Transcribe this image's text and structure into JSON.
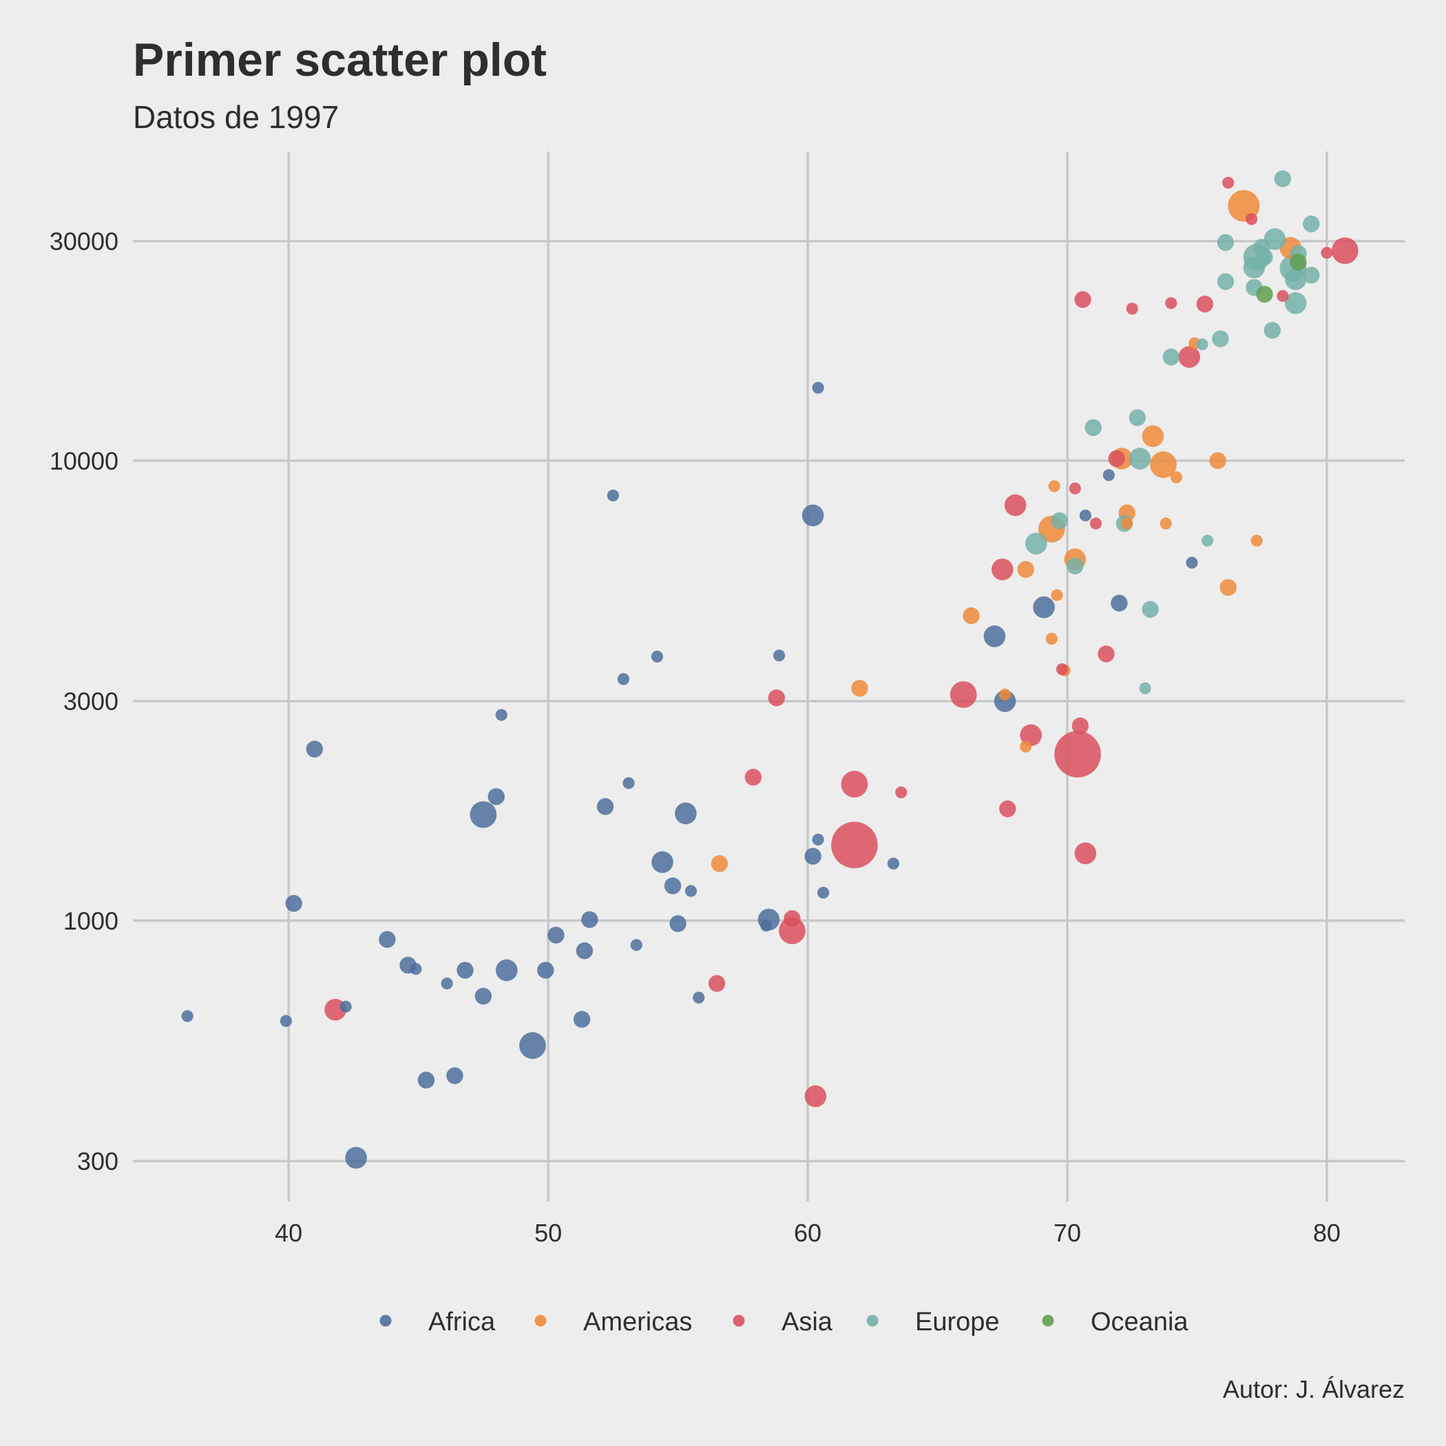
{
  "chart_data": {
    "type": "scatter",
    "title": "Primer scatter plot",
    "subtitle": "Datos de 1997",
    "caption": "Autor: J. Álvarez",
    "xlabel": "",
    "ylabel": "",
    "x_range": [
      34,
      83
    ],
    "y_range": [
      245,
      47000
    ],
    "y_scale": "log10",
    "x_ticks": [
      40,
      50,
      60,
      70,
      80
    ],
    "x_tick_labels": [
      "40",
      "50",
      "60",
      "70",
      "80"
    ],
    "y_ticks": [
      300,
      1000,
      3000,
      10000,
      30000
    ],
    "y_tick_labels": [
      "300",
      "1000",
      "3000",
      "10000",
      "30000"
    ],
    "grid": true,
    "legend_position": "bottom",
    "series": [
      {
        "name": "Africa",
        "color": "#4e6e9b",
        "points": [
          [
            36.1,
            620,
            1
          ],
          [
            39.9,
            605,
            1
          ],
          [
            40.2,
            1090,
            2
          ],
          [
            41,
            2360,
            2
          ],
          [
            42.2,
            650,
            1
          ],
          [
            42.6,
            305,
            3
          ],
          [
            43.8,
            910,
            2
          ],
          [
            44.6,
            800,
            2
          ],
          [
            44.9,
            785,
            1
          ],
          [
            46.1,
            730,
            1
          ],
          [
            46.4,
            460,
            2
          ],
          [
            45.3,
            450,
            2
          ],
          [
            46.8,
            780,
            2
          ],
          [
            47.5,
            685,
            2
          ],
          [
            47.5,
            1700,
            4
          ],
          [
            48,
            1860,
            2
          ],
          [
            48.2,
            2800,
            1
          ],
          [
            48.4,
            780,
            3
          ],
          [
            49.4,
            535,
            4
          ],
          [
            49.9,
            780,
            2
          ],
          [
            50.3,
            930,
            2
          ],
          [
            51.3,
            610,
            2
          ],
          [
            51.4,
            860,
            2
          ],
          [
            51.6,
            1005,
            2
          ],
          [
            52.2,
            1770,
            2
          ],
          [
            52.5,
            8400,
            1
          ],
          [
            52.9,
            3350,
            1
          ],
          [
            53.1,
            1990,
            1
          ],
          [
            53.4,
            885,
            1
          ],
          [
            54.2,
            3750,
            1
          ],
          [
            54.4,
            1340,
            3
          ],
          [
            54.8,
            1190,
            2
          ],
          [
            55,
            985,
            2
          ],
          [
            55.3,
            1710,
            3
          ],
          [
            55.5,
            1160,
            1
          ],
          [
            55.8,
            680,
            1
          ],
          [
            58.4,
            975,
            1
          ],
          [
            58.5,
            1005,
            3
          ],
          [
            58.9,
            3770,
            1
          ],
          [
            60.2,
            1380,
            2
          ],
          [
            60.2,
            7600,
            3
          ],
          [
            60.4,
            1500,
            1
          ],
          [
            60.4,
            14400,
            1
          ],
          [
            60.6,
            1150,
            1
          ],
          [
            63.3,
            1330,
            1
          ],
          [
            67.2,
            4150,
            3
          ],
          [
            67.6,
            3000,
            3
          ],
          [
            69.1,
            4800,
            3
          ],
          [
            70.7,
            7600,
            1
          ],
          [
            71.6,
            9300,
            1
          ],
          [
            72,
            4900,
            2
          ],
          [
            74.8,
            6000,
            1
          ]
        ]
      },
      {
        "name": "Americas",
        "color": "#ef8a3a",
        "points": [
          [
            56.6,
            1330,
            2
          ],
          [
            62,
            3200,
            2
          ],
          [
            66.3,
            4600,
            2
          ],
          [
            67.6,
            3100,
            1
          ],
          [
            68.4,
            2390,
            1
          ],
          [
            68.4,
            5800,
            2
          ],
          [
            69.4,
            4100,
            1
          ],
          [
            69.4,
            7100,
            4
          ],
          [
            69.5,
            8800,
            1
          ],
          [
            69.6,
            5100,
            1
          ],
          [
            69.9,
            3500,
            1
          ],
          [
            70.3,
            6100,
            3
          ],
          [
            72.1,
            10100,
            3
          ],
          [
            72.3,
            7700,
            2
          ],
          [
            72.3,
            7300,
            1
          ],
          [
            73.3,
            11300,
            3
          ],
          [
            73.7,
            9800,
            4
          ],
          [
            73.8,
            7300,
            1
          ],
          [
            74.2,
            9200,
            1
          ],
          [
            74.9,
            18000,
            1
          ],
          [
            75.8,
            10000,
            2
          ],
          [
            76.2,
            5300,
            2
          ],
          [
            77.3,
            6700,
            1
          ],
          [
            76.8,
            35800,
            5
          ],
          [
            78.6,
            29000,
            3
          ]
        ]
      },
      {
        "name": "Asia",
        "color": "#d9505e",
        "points": [
          [
            41.8,
            640,
            3
          ],
          [
            56.5,
            730,
            2
          ],
          [
            57.9,
            2050,
            2
          ],
          [
            58.8,
            3050,
            2
          ],
          [
            59.4,
            1010,
            2
          ],
          [
            59.4,
            950,
            4
          ],
          [
            60.3,
            415,
            3
          ],
          [
            61.8,
            1460,
            8
          ],
          [
            61.8,
            1980,
            4
          ],
          [
            63.6,
            1900,
            1
          ],
          [
            66,
            3100,
            4
          ],
          [
            67.5,
            5800,
            3
          ],
          [
            67.7,
            1750,
            2
          ],
          [
            68,
            8000,
            3
          ],
          [
            68.6,
            2530,
            3
          ],
          [
            69.8,
            3520,
            1
          ],
          [
            70.3,
            8700,
            1
          ],
          [
            70.4,
            2300,
            8
          ],
          [
            70.5,
            2650,
            2
          ],
          [
            70.6,
            22400,
            2
          ],
          [
            70.7,
            1400,
            3
          ],
          [
            71.1,
            7300,
            1
          ],
          [
            71.5,
            3800,
            2
          ],
          [
            71.9,
            10100,
            2
          ],
          [
            72.5,
            21400,
            1
          ],
          [
            74,
            22000,
            1
          ],
          [
            74.7,
            16800,
            3
          ],
          [
            75.3,
            21900,
            2
          ],
          [
            76.2,
            40200,
            1
          ],
          [
            77.1,
            33500,
            1
          ],
          [
            78.3,
            22800,
            1
          ],
          [
            80,
            28300,
            1
          ],
          [
            80.7,
            28600,
            4
          ]
        ]
      },
      {
        "name": "Europe",
        "color": "#74b0a8",
        "points": [
          [
            73,
            3200,
            1
          ],
          [
            71,
            11800,
            2
          ],
          [
            72.2,
            7300,
            2
          ],
          [
            72.8,
            10100,
            3
          ],
          [
            72.7,
            12400,
            2
          ],
          [
            73.2,
            4750,
            2
          ],
          [
            74,
            16800,
            2
          ],
          [
            75.2,
            17900,
            1
          ],
          [
            75.4,
            6700,
            1
          ],
          [
            75.9,
            18400,
            2
          ],
          [
            76.1,
            24500,
            2
          ],
          [
            76.1,
            29800,
            2
          ],
          [
            77.2,
            23800,
            2
          ],
          [
            77.2,
            26300,
            3
          ],
          [
            77.3,
            27700,
            4
          ],
          [
            77.5,
            29100,
            2
          ],
          [
            77.6,
            27700,
            2
          ],
          [
            77.9,
            19200,
            2
          ],
          [
            78,
            30300,
            3
          ],
          [
            78.3,
            41000,
            2
          ],
          [
            78.7,
            26200,
            4
          ],
          [
            78.8,
            22000,
            3
          ],
          [
            78.8,
            24800,
            3
          ],
          [
            78.9,
            28200,
            2
          ],
          [
            79.4,
            25300,
            2
          ],
          [
            79.4,
            32700,
            2
          ],
          [
            68.8,
            6600,
            3
          ],
          [
            69.7,
            7400,
            2
          ],
          [
            70.3,
            5900,
            2
          ]
        ]
      },
      {
        "name": "Oceania",
        "color": "#5f9e4f",
        "points": [
          [
            77.6,
            23000,
            2
          ],
          [
            78.9,
            27000,
            2
          ]
        ]
      }
    ]
  }
}
